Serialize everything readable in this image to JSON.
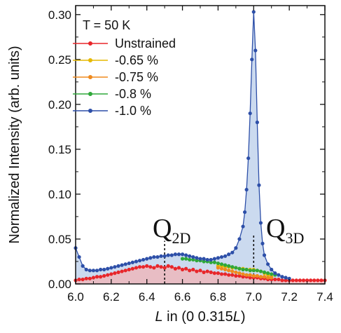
{
  "chart_data": {
    "type": "line",
    "ylabel": "Normalized Intensity (arb. units)",
    "xlabel": {
      "italic": "L",
      "mid": " in (0 0.315",
      "italic2": "L",
      "end": ")"
    },
    "xlim": [
      6.0,
      7.4
    ],
    "ylim": [
      0.0,
      0.31
    ],
    "x_ticks": [
      6.0,
      6.2,
      6.4,
      6.6,
      6.8,
      7.0,
      7.2,
      7.4
    ],
    "x_tick_labels": [
      "6.0",
      "6.2",
      "6.4",
      "6.6",
      "6.8",
      "7.0",
      "7.2",
      "7.4"
    ],
    "y_ticks": [
      0.0,
      0.05,
      0.1,
      0.15,
      0.2,
      0.25,
      0.3
    ],
    "y_tick_labels": [
      "0.00",
      "0.05",
      "0.10",
      "0.15",
      "0.20",
      "0.25",
      "0.30"
    ],
    "legend_title": "T = 50 K",
    "legend_position": "top-left",
    "annotations": [
      {
        "id": "q2d",
        "main": "Q",
        "sub": "2D",
        "x": 6.5,
        "y_from": 0.0,
        "y_to": 0.048
      },
      {
        "id": "q3d",
        "main": "Q",
        "sub": "3D",
        "x": 7.0,
        "y_from": 0.0,
        "y_to": 0.055
      }
    ],
    "series": [
      {
        "name": "Unstrained",
        "color": "#e8262a",
        "fill": "#f2b3b5",
        "x": [
          6.0,
          6.02,
          6.04,
          6.06,
          6.08,
          6.1,
          6.12,
          6.14,
          6.16,
          6.18,
          6.2,
          6.22,
          6.24,
          6.26,
          6.28,
          6.3,
          6.32,
          6.34,
          6.36,
          6.38,
          6.4,
          6.42,
          6.44,
          6.46,
          6.48,
          6.5,
          6.52,
          6.54,
          6.56,
          6.58,
          6.6,
          6.62,
          6.64,
          6.66,
          6.68,
          6.7,
          6.72,
          6.74,
          6.76,
          6.78,
          6.8,
          6.82,
          6.84,
          6.86,
          6.88,
          6.9,
          6.92,
          6.94,
          6.96,
          6.98,
          7.0,
          7.02,
          7.04,
          7.06,
          7.08,
          7.1,
          7.12,
          7.14,
          7.16,
          7.18,
          7.2,
          7.22,
          7.24,
          7.26,
          7.28,
          7.3,
          7.32,
          7.34,
          7.36,
          7.38,
          7.4
        ],
        "y": [
          0.004,
          0.005,
          0.005,
          0.006,
          0.006,
          0.007,
          0.008,
          0.008,
          0.009,
          0.01,
          0.011,
          0.012,
          0.013,
          0.014,
          0.015,
          0.016,
          0.017,
          0.018,
          0.019,
          0.019,
          0.02,
          0.019,
          0.018,
          0.02,
          0.019,
          0.018,
          0.02,
          0.019,
          0.017,
          0.018,
          0.016,
          0.017,
          0.015,
          0.016,
          0.014,
          0.015,
          0.013,
          0.014,
          0.013,
          0.012,
          0.012,
          0.011,
          0.011,
          0.01,
          0.01,
          0.009,
          0.009,
          0.008,
          0.008,
          0.007,
          0.007,
          0.007,
          0.006,
          0.006,
          0.005,
          0.005,
          0.005,
          0.005,
          0.004,
          0.004,
          0.004,
          0.004,
          0.004,
          0.004,
          0.004,
          0.004,
          0.004,
          0.004,
          0.004,
          0.004,
          0.004
        ]
      },
      {
        "name": "-0.65 %",
        "color": "#e6b800",
        "fill": null,
        "x": [
          6.8,
          6.82,
          6.84,
          6.86,
          6.88,
          6.9,
          6.92,
          6.94,
          6.96,
          6.98,
          7.0,
          7.02,
          7.04,
          7.06,
          7.08,
          7.1
        ],
        "y": [
          0.02,
          0.02,
          0.019,
          0.019,
          0.018,
          0.018,
          0.017,
          0.017,
          0.016,
          0.016,
          0.016,
          0.015,
          0.014,
          0.012,
          0.01,
          0.008
        ]
      },
      {
        "name": "-0.75 %",
        "color": "#ef8a1e",
        "fill": null,
        "x": [
          6.8,
          6.82,
          6.84,
          6.86,
          6.88,
          6.9,
          6.92,
          6.94,
          6.96,
          6.98,
          7.0,
          7.02,
          7.04,
          7.06,
          7.08,
          7.1
        ],
        "y": [
          0.018,
          0.017,
          0.016,
          0.015,
          0.014,
          0.013,
          0.012,
          0.011,
          0.01,
          0.01,
          0.009,
          0.009,
          0.008,
          0.008,
          0.007,
          0.007
        ]
      },
      {
        "name": "-0.8 %",
        "color": "#2fa83a",
        "fill": null,
        "x": [
          6.6,
          6.62,
          6.64,
          6.66,
          6.68,
          6.7,
          6.72,
          6.74,
          6.76,
          6.78,
          6.8,
          6.82,
          6.84,
          6.86,
          6.88,
          6.9,
          6.92,
          6.94,
          6.96,
          6.98,
          7.0,
          7.02,
          7.04,
          7.06,
          7.08,
          7.1,
          7.12
        ],
        "y": [
          0.028,
          0.028,
          0.027,
          0.027,
          0.026,
          0.026,
          0.025,
          0.025,
          0.024,
          0.024,
          0.023,
          0.022,
          0.021,
          0.02,
          0.019,
          0.018,
          0.017,
          0.016,
          0.016,
          0.015,
          0.015,
          0.015,
          0.014,
          0.013,
          0.012,
          0.011,
          0.01
        ]
      },
      {
        "name": "-1.0 %",
        "color": "#2d4fa8",
        "fill": "#b9cdea",
        "x": [
          6.0,
          6.02,
          6.04,
          6.06,
          6.08,
          6.1,
          6.12,
          6.14,
          6.16,
          6.18,
          6.2,
          6.22,
          6.24,
          6.26,
          6.28,
          6.3,
          6.32,
          6.34,
          6.36,
          6.38,
          6.4,
          6.42,
          6.44,
          6.46,
          6.48,
          6.5,
          6.52,
          6.54,
          6.56,
          6.58,
          6.6,
          6.62,
          6.64,
          6.66,
          6.68,
          6.7,
          6.72,
          6.74,
          6.76,
          6.78,
          6.8,
          6.82,
          6.84,
          6.86,
          6.88,
          6.9,
          6.92,
          6.94,
          6.95,
          6.96,
          6.97,
          6.98,
          6.99,
          7.0,
          7.01,
          7.02,
          7.03,
          7.04,
          7.05,
          7.06,
          7.08,
          7.1,
          7.12,
          7.14,
          7.16,
          7.18,
          7.2
        ],
        "y": [
          0.04,
          0.03,
          0.02,
          0.016,
          0.015,
          0.015,
          0.015,
          0.016,
          0.016,
          0.017,
          0.018,
          0.019,
          0.02,
          0.021,
          0.022,
          0.023,
          0.024,
          0.025,
          0.026,
          0.027,
          0.028,
          0.029,
          0.03,
          0.03,
          0.031,
          0.031,
          0.032,
          0.032,
          0.033,
          0.033,
          0.033,
          0.032,
          0.031,
          0.03,
          0.029,
          0.028,
          0.028,
          0.027,
          0.027,
          0.028,
          0.029,
          0.03,
          0.031,
          0.033,
          0.035,
          0.04,
          0.05,
          0.064,
          0.08,
          0.105,
          0.14,
          0.19,
          0.25,
          0.303,
          0.26,
          0.18,
          0.11,
          0.068,
          0.045,
          0.032,
          0.022,
          0.016,
          0.012,
          0.01,
          0.008,
          0.007,
          0.006
        ]
      }
    ]
  }
}
